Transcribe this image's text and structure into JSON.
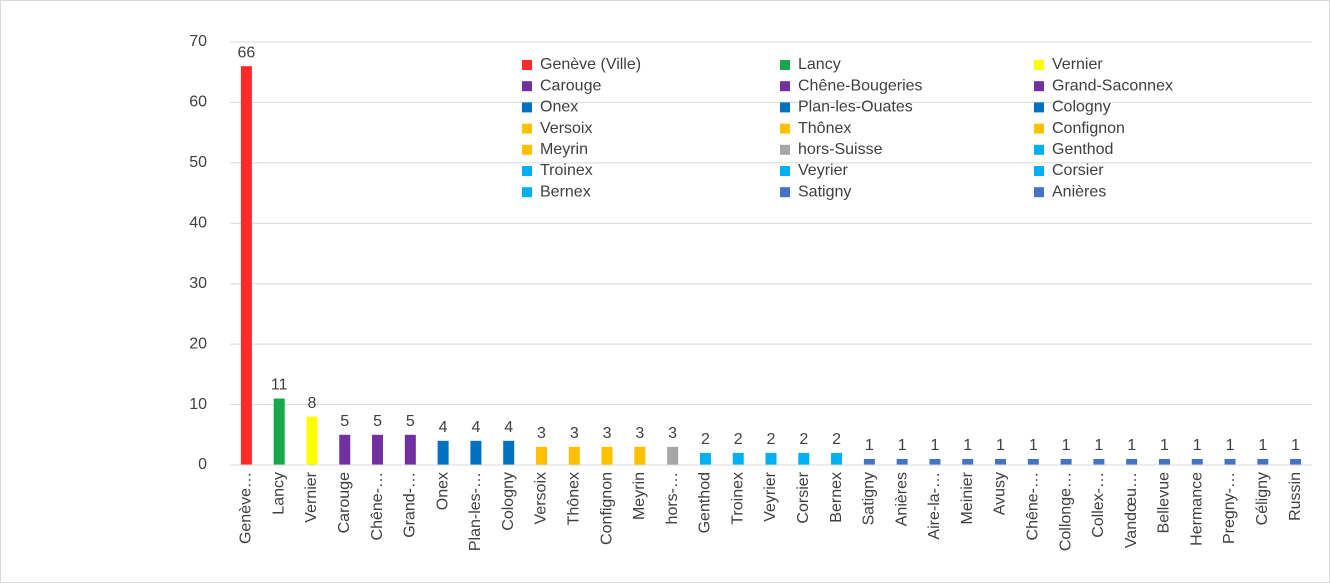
{
  "chart_data": {
    "type": "bar",
    "categories": [
      "Genève…",
      "Lancy",
      "Vernier",
      "Carouge",
      "Chêne-…",
      "Grand-…",
      "Onex",
      "Plan-les-…",
      "Cologny",
      "Versoix",
      "Thônex",
      "Confignon",
      "Meyrin",
      "hors-…",
      "Genthod",
      "Troinex",
      "Veyrier",
      "Corsier",
      "Bernex",
      "Satigny",
      "Anières",
      "Aire-la-…",
      "Meinier",
      "Avusy",
      "Chêne-…",
      "Collonge…",
      "Collex-…",
      "Vandœu…",
      "Bellevue",
      "Hermance",
      "Pregny-…",
      "Céligny",
      "Russin"
    ],
    "values": [
      66,
      11,
      8,
      5,
      5,
      5,
      4,
      4,
      4,
      3,
      3,
      3,
      3,
      3,
      2,
      2,
      2,
      2,
      2,
      1,
      1,
      1,
      1,
      1,
      1,
      1,
      1,
      1,
      1,
      1,
      1,
      1,
      1
    ],
    "colors": [
      "#ff2a2a",
      "#1aa64a",
      "#ffff00",
      "#7030a0",
      "#7030a0",
      "#7030a0",
      "#0070c0",
      "#0070c0",
      "#0070c0",
      "#ffc000",
      "#ffc000",
      "#ffc000",
      "#ffc000",
      "#a6a6a6",
      "#00b0f0",
      "#00b0f0",
      "#00b0f0",
      "#00b0f0",
      "#00b0f0",
      "#4472c4",
      "#4472c4",
      "#4472c4",
      "#4472c4",
      "#4472c4",
      "#4472c4",
      "#4472c4",
      "#4472c4",
      "#4472c4",
      "#4472c4",
      "#4472c4",
      "#4472c4",
      "#4472c4",
      "#4472c4"
    ],
    "legend": [
      {
        "name": "Genève (Ville)",
        "color": "#ff2a2a"
      },
      {
        "name": "Lancy",
        "color": "#1aa64a"
      },
      {
        "name": "Vernier",
        "color": "#ffff00"
      },
      {
        "name": "Carouge",
        "color": "#7030a0"
      },
      {
        "name": "Chêne-Bougeries",
        "color": "#7030a0"
      },
      {
        "name": "Grand-Saconnex",
        "color": "#7030a0"
      },
      {
        "name": "Onex",
        "color": "#0070c0"
      },
      {
        "name": "Plan-les-Ouates",
        "color": "#0070c0"
      },
      {
        "name": "Cologny",
        "color": "#0070c0"
      },
      {
        "name": "Versoix",
        "color": "#ffc000"
      },
      {
        "name": "Thônex",
        "color": "#ffc000"
      },
      {
        "name": "Confignon",
        "color": "#ffc000"
      },
      {
        "name": "Meyrin",
        "color": "#ffc000"
      },
      {
        "name": "hors-Suisse",
        "color": "#a6a6a6"
      },
      {
        "name": "Genthod",
        "color": "#00b0f0"
      },
      {
        "name": "Troinex",
        "color": "#00b0f0"
      },
      {
        "name": "Veyrier",
        "color": "#00b0f0"
      },
      {
        "name": "Corsier",
        "color": "#00b0f0"
      },
      {
        "name": "Bernex",
        "color": "#00b0f0"
      },
      {
        "name": "Satigny",
        "color": "#4472c4"
      },
      {
        "name": "Anières",
        "color": "#4472c4"
      }
    ],
    "ylim": [
      0,
      70
    ],
    "yticks": [
      0,
      10,
      20,
      30,
      40,
      50,
      60,
      70
    ],
    "grid": true
  }
}
